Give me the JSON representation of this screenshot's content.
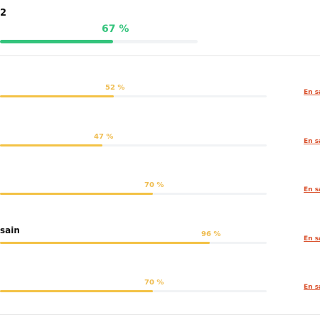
{
  "header": {
    "title": "2",
    "overall_percent_label": "67 %",
    "overall_percent": 67
  },
  "rows": [
    {
      "label": "",
      "percent_label": "52 %",
      "percent": 52,
      "link_label": "En sa"
    },
    {
      "label": "",
      "percent_label": "47 %",
      "percent": 47,
      "link_label": "En sa"
    },
    {
      "label": "",
      "percent_label": "70 %",
      "percent": 70,
      "link_label": "En sa"
    },
    {
      "label": "sain",
      "percent_label": "96 %",
      "percent": 96,
      "link_label": "En sa"
    },
    {
      "label": "",
      "percent_label": "70 %",
      "percent": 70,
      "link_label": "En sa"
    }
  ],
  "colors": {
    "overall_accent": "#34c47c",
    "bar_accent": "#f3c246",
    "link": "#d94f2a",
    "track": "#f1f3f5"
  }
}
